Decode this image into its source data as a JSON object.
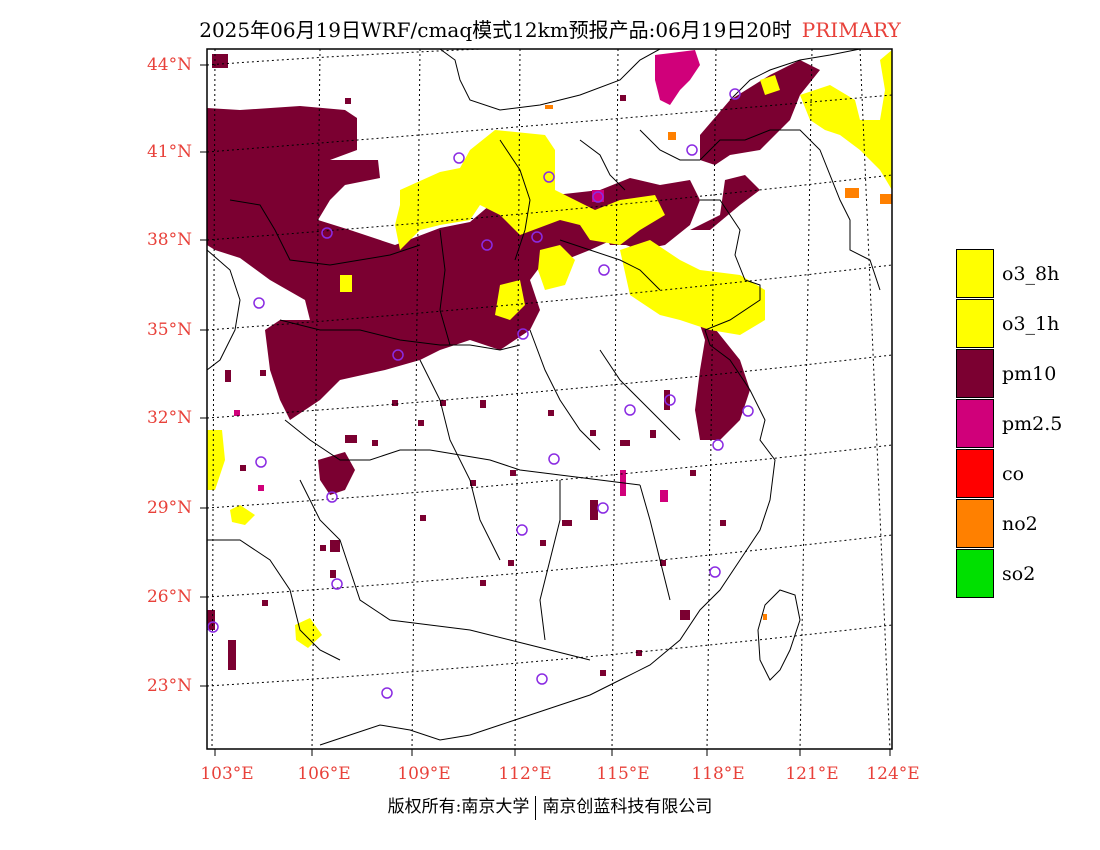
{
  "title": {
    "main": "2025年06月19日WRF/cmaq模式12km预报产品:06月19日20时",
    "tag": "PRIMARY"
  },
  "colors": {
    "label_red": "#e8413a",
    "o3_8h": "#ffff00",
    "o3_1h": "#ffff00",
    "pm10": "#7b0031",
    "pm2_5": "#d0007a",
    "co": "#ff0000",
    "no2": "#ff8000",
    "so2": "#00e000",
    "station_marker": "#8a2be2"
  },
  "axes": {
    "lat_labels": [
      "44°N",
      "41°N",
      "38°N",
      "35°N",
      "32°N",
      "29°N",
      "26°N",
      "23°N"
    ],
    "lon_labels": [
      "103°E",
      "106°E",
      "109°E",
      "112°E",
      "115°E",
      "118°E",
      "121°E",
      "124°E"
    ]
  },
  "legend": [
    {
      "label": "o3_8h",
      "color": "#ffff00"
    },
    {
      "label": "o3_1h",
      "color": "#ffff00"
    },
    {
      "label": "pm10",
      "color": "#7b0031"
    },
    {
      "label": "pm2.5",
      "color": "#d0007a"
    },
    {
      "label": "co",
      "color": "#ff0000"
    },
    {
      "label": "no2",
      "color": "#ff8000"
    },
    {
      "label": "so2",
      "color": "#00e000"
    }
  ],
  "copyright": {
    "left": "版权所有:南京大学",
    "right": "南京创蓝科技有限公司"
  }
}
